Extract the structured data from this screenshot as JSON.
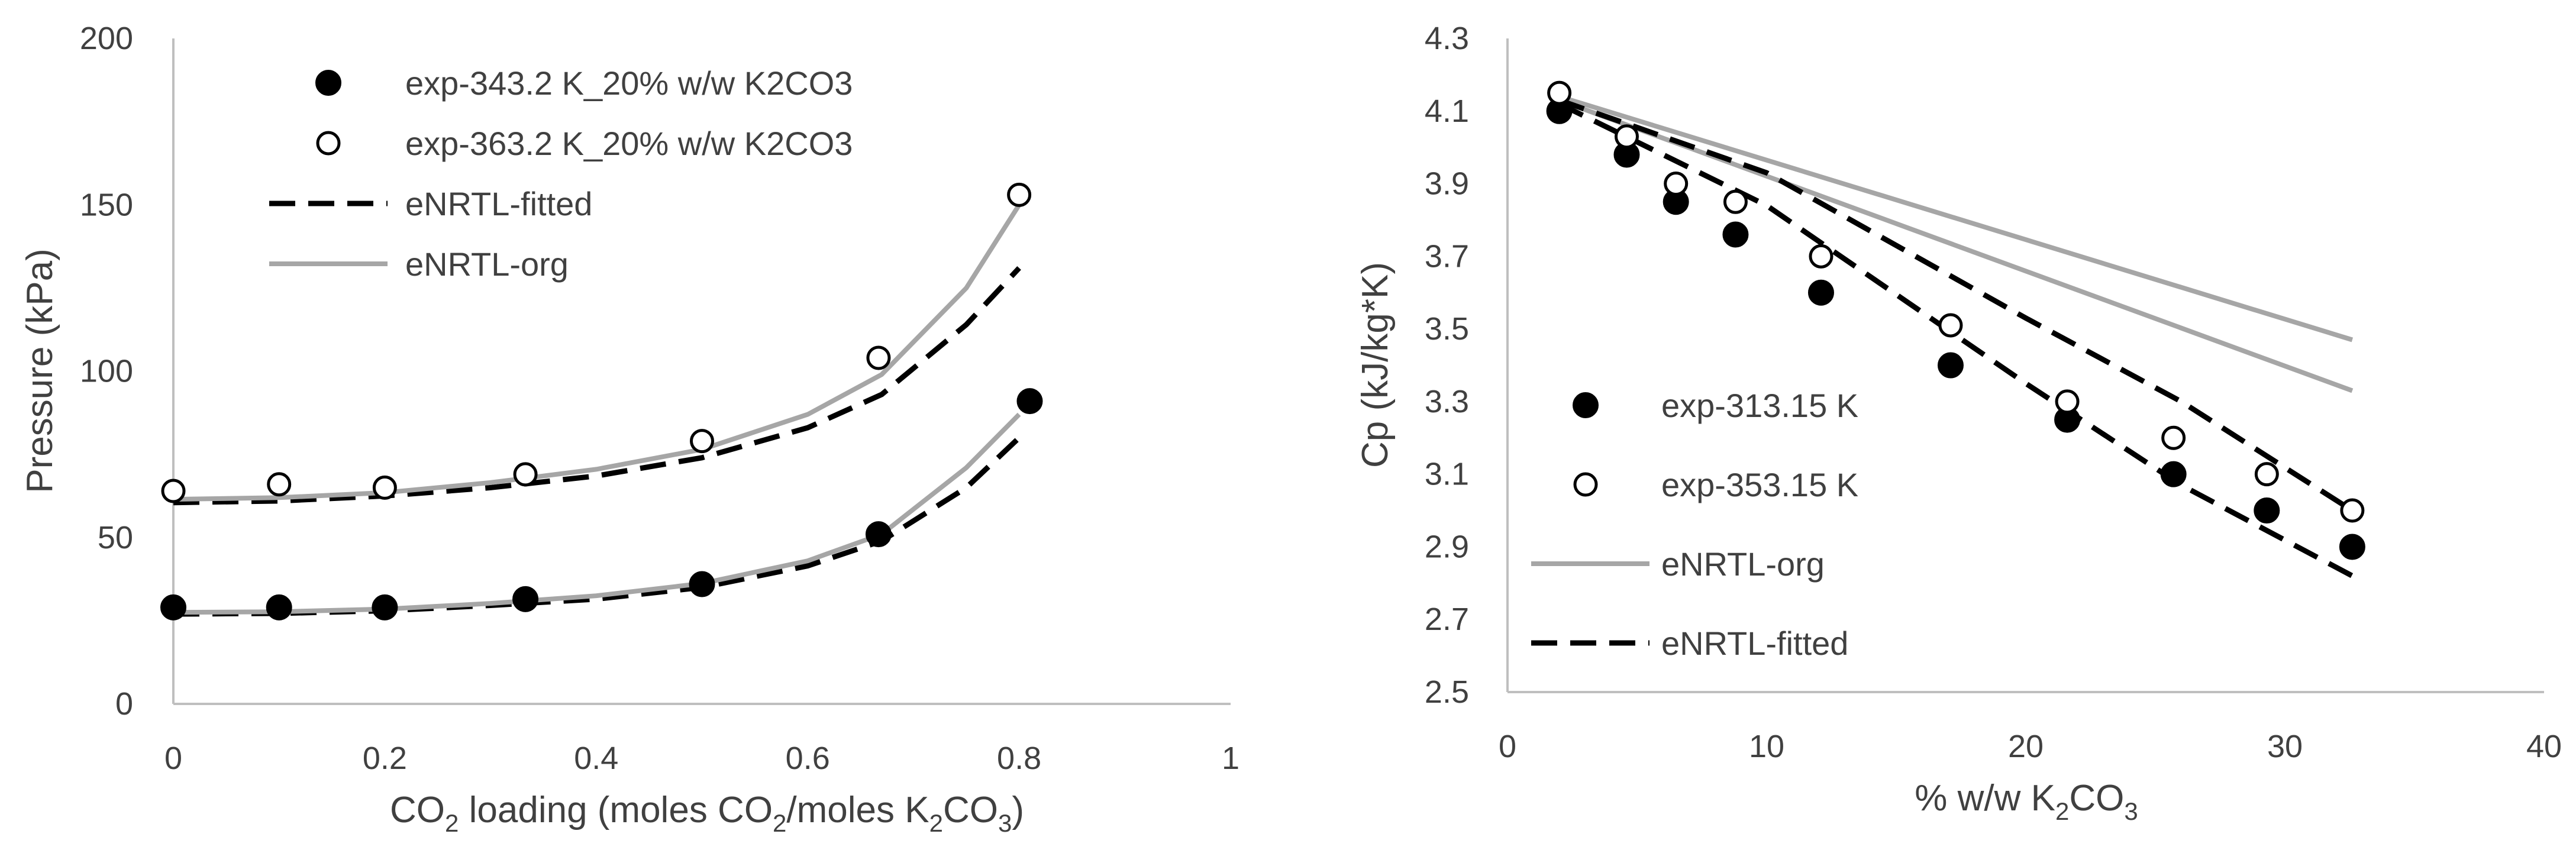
{
  "colors": {
    "filled_marker": "#000000",
    "open_marker": "#ffffff",
    "fitted_line": "#000000",
    "org_line": "#a6a6a6",
    "axis": "#bfbfbf",
    "text": "#404040"
  },
  "chart_data": [
    {
      "type": "scatter",
      "title": "",
      "xlabel_parts": [
        "CO",
        "2",
        " loading (moles CO",
        "2",
        "/moles K",
        "2",
        "CO",
        "3",
        ")"
      ],
      "xlabel": "CO2 loading (moles CO2/moles K2CO3)",
      "ylabel": "Pressure (kPa)",
      "xlim": [
        0,
        1
      ],
      "ylim": [
        0,
        200
      ],
      "xticks": [
        0,
        0.2,
        0.4,
        0.6,
        0.8,
        1
      ],
      "xtick_labels": [
        "0",
        "0.2",
        "0.4",
        "0.6",
        "0.8",
        "1"
      ],
      "yticks": [
        0,
        50,
        100,
        150,
        200
      ],
      "ytick_labels": [
        "0",
        "50",
        "100",
        "150",
        "200"
      ],
      "grid": false,
      "legend_position": "top-left",
      "series": [
        {
          "name": "exp-343.2 K_20% w/w K2CO3",
          "kind": "marker",
          "style": "filled",
          "x": [
            0,
            0.1,
            0.2,
            0.333,
            0.5,
            0.667,
            0.81
          ],
          "y": [
            29,
            29,
            29,
            31.5,
            36,
            51,
            91
          ]
        },
        {
          "name": "exp-363.2 K_20% w/w K2CO3",
          "kind": "marker",
          "style": "open",
          "x": [
            0,
            0.1,
            0.2,
            0.333,
            0.5,
            0.667,
            0.8
          ],
          "y": [
            64,
            66,
            65,
            69,
            79,
            104,
            153
          ]
        },
        {
          "name": "eNRTL-fitted",
          "kind": "line",
          "style": "dashed",
          "curves": [
            {
              "x": [
                0,
                0.1,
                0.2,
                0.3,
                0.4,
                0.5,
                0.6,
                0.67,
                0.75,
                0.8
              ],
              "y": [
                27,
                27.2,
                28,
                29.6,
                31.5,
                35,
                41.5,
                49,
                65,
                80
              ]
            },
            {
              "x": [
                0,
                0.1,
                0.2,
                0.3,
                0.4,
                0.5,
                0.6,
                0.67,
                0.75,
                0.8
              ],
              "y": [
                60.5,
                61,
                62.5,
                65,
                68.5,
                74,
                83,
                93,
                114,
                131
              ]
            }
          ]
        },
        {
          "name": "eNRTL-org",
          "kind": "line",
          "style": "solid",
          "curves": [
            {
              "x": [
                0,
                0.1,
                0.2,
                0.3,
                0.4,
                0.5,
                0.6,
                0.67,
                0.75,
                0.8
              ],
              "y": [
                27.5,
                27.7,
                28.5,
                30.2,
                32.5,
                36.2,
                43,
                51,
                71,
                87
              ]
            },
            {
              "x": [
                0,
                0.1,
                0.2,
                0.3,
                0.4,
                0.5,
                0.6,
                0.67,
                0.75,
                0.8
              ],
              "y": [
                61.5,
                62,
                63.5,
                66.5,
                70.5,
                76.5,
                87,
                99,
                125,
                150
              ]
            }
          ]
        }
      ]
    },
    {
      "type": "scatter",
      "title": "",
      "xlabel_parts": [
        "% w/w K",
        "2",
        "CO",
        "3",
        ""
      ],
      "xlabel": "% w/w K2CO3",
      "ylabel": "Cp (kJ/kg*K)",
      "xlim": [
        0,
        40
      ],
      "ylim": [
        2.5,
        4.3
      ],
      "xticks": [
        0,
        10,
        20,
        30,
        40
      ],
      "xtick_labels": [
        "0",
        "10",
        "20",
        "30",
        "40"
      ],
      "yticks": [
        2.5,
        2.7,
        2.9,
        3.1,
        3.3,
        3.5,
        3.7,
        3.9,
        4.1,
        4.3
      ],
      "ytick_labels": [
        "2.5",
        "2.7",
        "2.9",
        "3.1",
        "3.3",
        "3.5",
        "3.7",
        "3.9",
        "4.1",
        "4.3"
      ],
      "grid": false,
      "legend_position": "bottom-left",
      "series": [
        {
          "name": "exp-313.15 K",
          "kind": "marker",
          "style": "filled",
          "x": [
            2,
            4.6,
            6.5,
            8.8,
            12.1,
            17.1,
            21.6,
            25.7,
            29.3,
            32.6
          ],
          "y": [
            4.1,
            3.98,
            3.85,
            3.76,
            3.6,
            3.4,
            3.25,
            3.1,
            3.0,
            2.9
          ]
        },
        {
          "name": "exp-353.15 K",
          "kind": "marker",
          "style": "open",
          "x": [
            2,
            4.6,
            6.5,
            8.8,
            12.1,
            17.1,
            21.6,
            25.7,
            29.3,
            32.6
          ],
          "y": [
            4.15,
            4.03,
            3.9,
            3.85,
            3.7,
            3.51,
            3.3,
            3.2,
            3.1,
            3.0
          ]
        },
        {
          "name": "eNRTL-org",
          "kind": "line",
          "style": "solid",
          "curves": [
            {
              "x": [
                2,
                32.6
              ],
              "y": [
                4.14,
                3.47
              ]
            },
            {
              "x": [
                2,
                32.6
              ],
              "y": [
                4.13,
                3.33
              ]
            }
          ]
        },
        {
          "name": "eNRTL-fitted",
          "kind": "line",
          "style": "dashed",
          "curves": [
            {
              "x": [
                2,
                10,
                20,
                26,
                32.6
              ],
              "y": [
                4.13,
                3.93,
                3.53,
                3.3,
                3.0
              ]
            },
            {
              "x": [
                2,
                10,
                20,
                26,
                32.6
              ],
              "y": [
                4.12,
                3.84,
                3.35,
                3.07,
                2.82
              ]
            }
          ]
        }
      ]
    }
  ]
}
